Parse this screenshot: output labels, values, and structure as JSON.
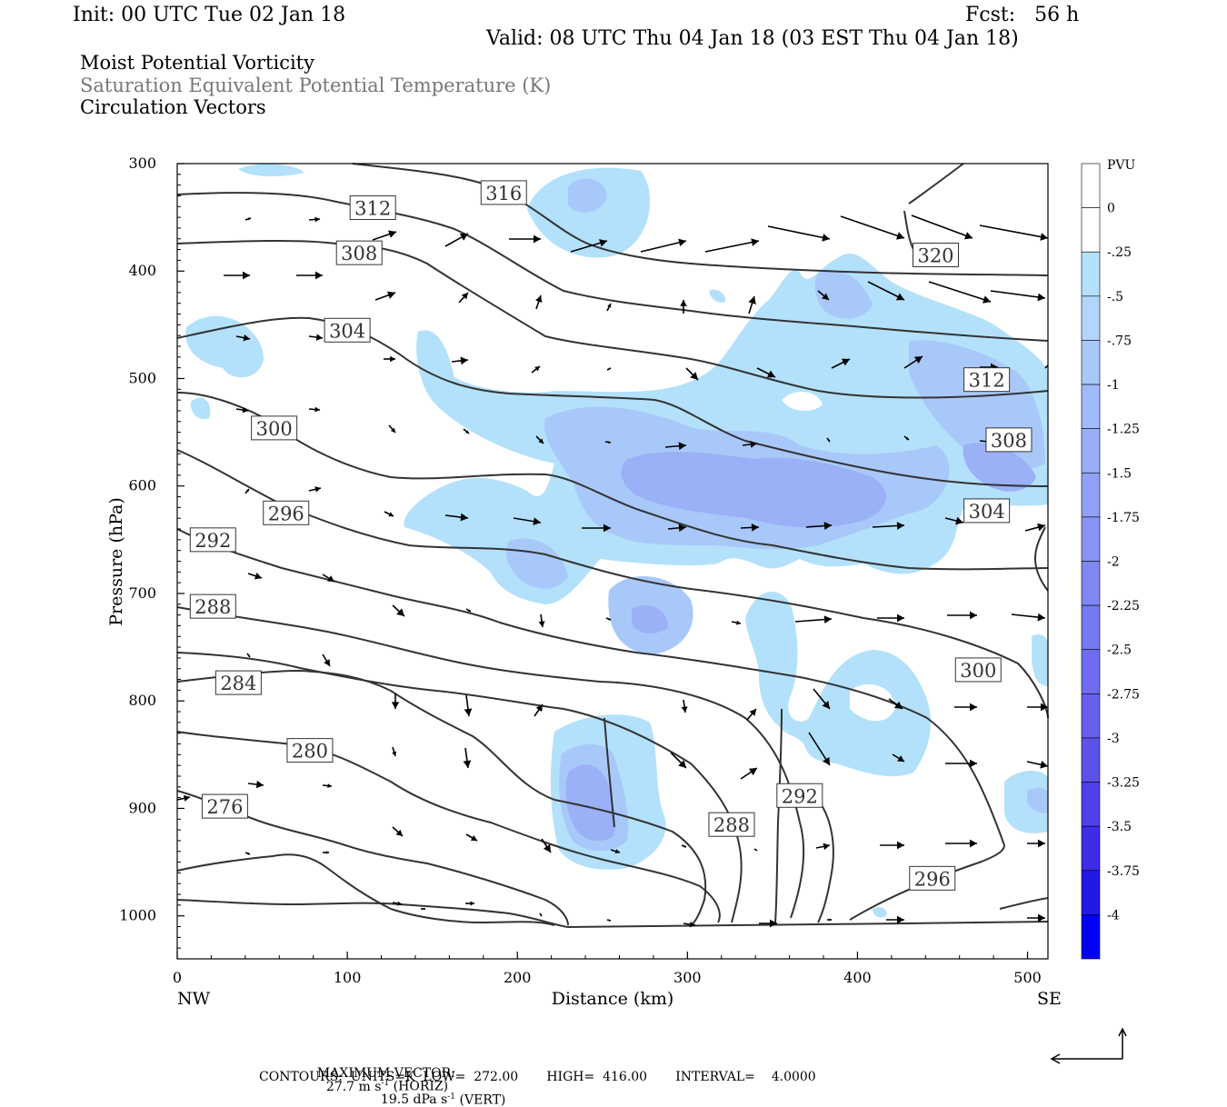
{
  "header": {
    "init": "Init: 00 UTC Tue 02 Jan 18",
    "fcst": "Fcst:   56 h",
    "valid": "Valid: 08 UTC Thu 04 Jan 18 (03 EST Thu 04 Jan 18)",
    "field1": "Moist Potential Vorticity",
    "field2": "Saturation Equivalent Potential Temperature (K)",
    "field3": "Circulation Vectors"
  },
  "footer": {
    "max_vector_label": "MAXIMUM VECTOR:",
    "horiz": "27.7 m s",
    "horiz_unit": " (HORIZ)",
    "vert": "19.5 dPa s",
    "vert_unit": " (VERT)",
    "exp": "-1",
    "contours": "CONTOURS:  UNITS=K  LOW=  272.00       HIGH=  416.00       INTERVAL=    4.0000"
  },
  "colors": {
    "light_blue": "#b3e1fb",
    "pv_fill_1": "#a9c8fa",
    "pv_fill_2": "#9ab0f7",
    "contour": "#333333",
    "grid": "#000000"
  },
  "chart_data": {
    "type": "contour",
    "xlabel": "Distance (km)",
    "ylabel": "Pressure (hPa)",
    "xlim": [
      0,
      512
    ],
    "ylim": [
      300,
      1040
    ],
    "x_ticks": [
      0,
      100,
      200,
      300,
      400,
      500
    ],
    "y_ticks": [
      300,
      400,
      500,
      600,
      700,
      800,
      900,
      1000
    ],
    "x_left_label": "NW",
    "x_right_label": "SE",
    "legend_title": "PVU",
    "legend_levels": [
      "0",
      "-.25",
      "-.5",
      "-.75",
      "-1",
      "-1.25",
      "-1.5",
      "-1.75",
      "-2",
      "-2.25",
      "-2.5",
      "-2.75",
      "-3",
      "-3.25",
      "-3.5",
      "-3.75",
      "-4"
    ],
    "legend_colors": [
      "#ffffff",
      "#ffffff",
      "#b3e1fb",
      "#b3d5fb",
      "#a9c8fa",
      "#9fbbf9",
      "#98aef7",
      "#90a1f5",
      "#8893f4",
      "#8086f2",
      "#7779f0",
      "#6f6cef",
      "#6660ed",
      "#5c52ea",
      "#4f40e8",
      "#3e2ce6",
      "#2418e4",
      "#0000f8"
    ],
    "contour_labels": [
      {
        "value": "316",
        "x": 192,
        "p": 327
      },
      {
        "value": "312",
        "x": 115,
        "p": 341
      },
      {
        "value": "308",
        "x": 107,
        "p": 383
      },
      {
        "value": "320",
        "x": 446,
        "p": 385
      },
      {
        "value": "304",
        "x": 100,
        "p": 455
      },
      {
        "value": "312",
        "x": 476,
        "p": 501
      },
      {
        "value": "300",
        "x": 57,
        "p": 546
      },
      {
        "value": "308",
        "x": 489,
        "p": 557
      },
      {
        "value": "296",
        "x": 64,
        "p": 625
      },
      {
        "value": "304",
        "x": 476,
        "p": 623
      },
      {
        "value": "292",
        "x": 21,
        "p": 650
      },
      {
        "value": "288",
        "x": 21,
        "p": 712
      },
      {
        "value": "300",
        "x": 471,
        "p": 771
      },
      {
        "value": "284",
        "x": 36,
        "p": 783
      },
      {
        "value": "280",
        "x": 78,
        "p": 846
      },
      {
        "value": "292",
        "x": 366,
        "p": 888
      },
      {
        "value": "276",
        "x": 28,
        "p": 898
      },
      {
        "value": "288",
        "x": 326,
        "p": 915
      },
      {
        "value": "296",
        "x": 444,
        "p": 965
      }
    ]
  }
}
